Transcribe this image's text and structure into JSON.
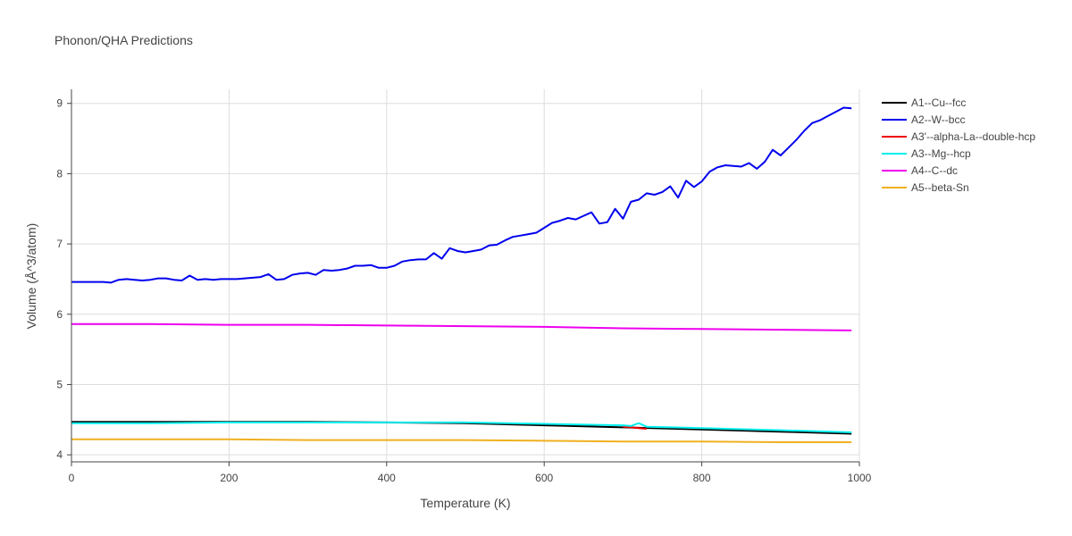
{
  "chart_data": {
    "type": "line",
    "title": "Phonon/QHA Predictions",
    "xlabel": "Temperature (K)",
    "ylabel": "Volume (Å^3/atom)",
    "xlim": [
      0,
      1000
    ],
    "ylim": [
      3.9,
      9.2
    ],
    "xticks": [
      0,
      200,
      400,
      600,
      800,
      1000
    ],
    "yticks": [
      4,
      5,
      6,
      7,
      8,
      9
    ],
    "grid": true,
    "legend_position": "top-right",
    "series": [
      {
        "name": "A1--Cu--fcc",
        "color": "#000000",
        "x": [
          0,
          100,
          200,
          300,
          400,
          500,
          600,
          700,
          800,
          900,
          990
        ],
        "y": [
          4.47,
          4.47,
          4.47,
          4.47,
          4.46,
          4.45,
          4.42,
          4.39,
          4.36,
          4.33,
          4.3
        ]
      },
      {
        "name": "A2--W--bcc",
        "color": "#0000ee",
        "x": [
          0,
          10,
          20,
          30,
          40,
          50,
          60,
          70,
          80,
          90,
          100,
          110,
          120,
          130,
          140,
          150,
          160,
          170,
          180,
          190,
          200,
          210,
          220,
          230,
          240,
          250,
          260,
          270,
          280,
          290,
          300,
          310,
          320,
          330,
          340,
          350,
          360,
          370,
          380,
          390,
          400,
          410,
          420,
          430,
          440,
          450,
          460,
          470,
          480,
          490,
          500,
          510,
          520,
          530,
          540,
          550,
          560,
          570,
          580,
          590,
          600,
          610,
          620,
          630,
          640,
          650,
          660,
          670,
          680,
          690,
          700,
          710,
          720,
          730,
          740,
          750,
          760,
          770,
          780,
          790,
          800,
          810,
          820,
          830,
          840,
          850,
          860,
          870,
          880,
          890,
          900,
          910,
          920,
          930,
          940,
          950,
          960,
          970,
          980,
          990
        ],
        "y": [
          6.46,
          6.46,
          6.46,
          6.46,
          6.46,
          6.45,
          6.49,
          6.5,
          6.49,
          6.48,
          6.49,
          6.51,
          6.51,
          6.49,
          6.48,
          6.55,
          6.49,
          6.5,
          6.49,
          6.5,
          6.5,
          6.5,
          6.51,
          6.52,
          6.53,
          6.57,
          6.49,
          6.5,
          6.56,
          6.58,
          6.59,
          6.56,
          6.63,
          6.62,
          6.63,
          6.65,
          6.69,
          6.69,
          6.7,
          6.66,
          6.66,
          6.69,
          6.75,
          6.77,
          6.78,
          6.78,
          6.87,
          6.79,
          6.94,
          6.9,
          6.88,
          6.9,
          6.92,
          6.98,
          6.99,
          7.05,
          7.1,
          7.12,
          7.14,
          7.16,
          7.23,
          7.3,
          7.33,
          7.37,
          7.35,
          7.4,
          7.45,
          7.29,
          7.31,
          7.5,
          7.36,
          7.6,
          7.63,
          7.72,
          7.7,
          7.74,
          7.82,
          7.66,
          7.9,
          7.81,
          7.89,
          8.03,
          8.09,
          8.12,
          8.11,
          8.1,
          8.15,
          8.07,
          8.17,
          8.34,
          8.26,
          8.37,
          8.48,
          8.61,
          8.72,
          8.76,
          8.82,
          8.88,
          8.94,
          8.93
        ]
      },
      {
        "name": "A3'--alpha-La--double-hcp",
        "color": "#ee0000",
        "x": [
          700,
          710,
          720,
          730
        ],
        "y": [
          4.4,
          4.39,
          4.38,
          4.37
        ]
      },
      {
        "name": "A3--Mg--hcp",
        "color": "#00eeee",
        "x": [
          0,
          100,
          200,
          300,
          400,
          500,
          600,
          700,
          710,
          720,
          730,
          800,
          900,
          990
        ],
        "y": [
          4.45,
          4.45,
          4.46,
          4.46,
          4.46,
          4.46,
          4.44,
          4.42,
          4.41,
          4.45,
          4.4,
          4.38,
          4.35,
          4.32
        ]
      },
      {
        "name": "A4--C--dc",
        "color": "#ee00ee",
        "x": [
          0,
          100,
          200,
          300,
          400,
          500,
          600,
          700,
          800,
          900,
          990
        ],
        "y": [
          5.86,
          5.86,
          5.85,
          5.85,
          5.84,
          5.83,
          5.82,
          5.8,
          5.79,
          5.78,
          5.77
        ]
      },
      {
        "name": "A5--beta-Sn",
        "color": "#f0b020",
        "x": [
          0,
          100,
          200,
          300,
          400,
          500,
          600,
          700,
          800,
          900,
          990
        ],
        "y": [
          4.22,
          4.22,
          4.22,
          4.21,
          4.21,
          4.21,
          4.2,
          4.19,
          4.19,
          4.18,
          4.18
        ]
      }
    ]
  }
}
